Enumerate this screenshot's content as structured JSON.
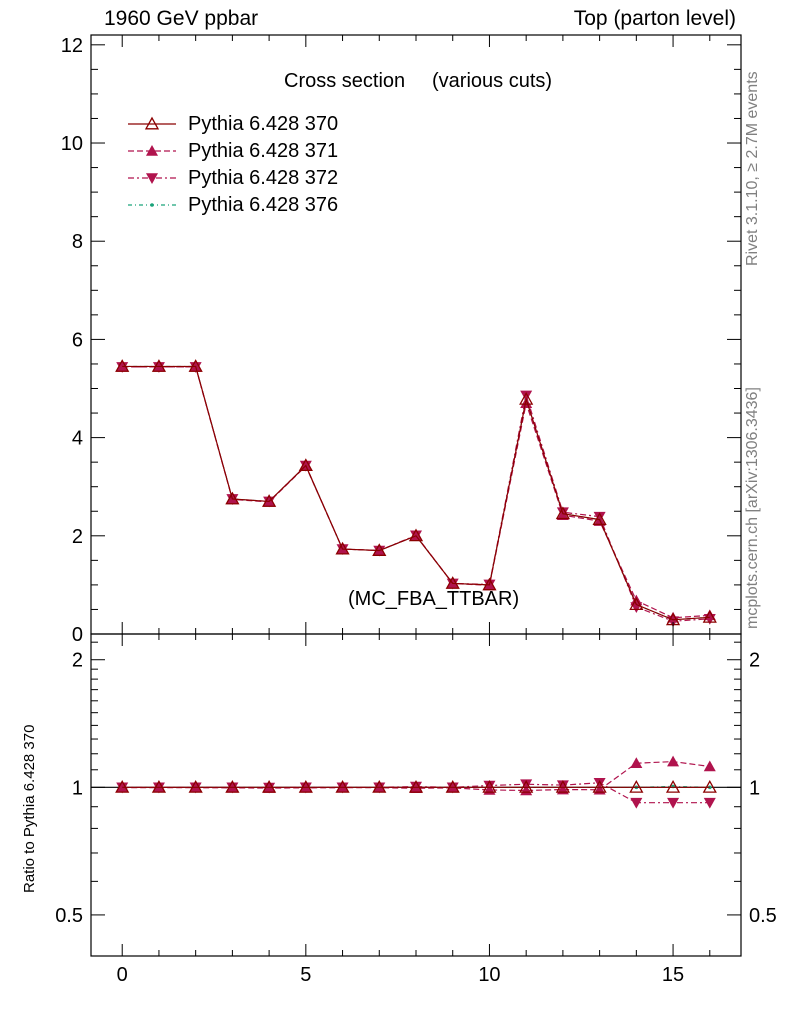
{
  "header": {
    "left": "1960 GeV ppbar",
    "right": "Top (parton level)"
  },
  "side_labels": {
    "rivet": "Rivet 3.1.10, ≥ 2.7M events",
    "mcplots": "mcplots.cern.ch [arXiv:1306.3436]"
  },
  "colors": {
    "s370": "#8b0000",
    "s371": "#b0134d",
    "s372": "#b0134d",
    "s376": "#1aa37a",
    "watermark": "#808080"
  },
  "chart_data": [
    {
      "type": "line",
      "title": "Cross section",
      "subtitle": "(various cuts)",
      "watermark": "(MC_FBA_TTBAR)",
      "xlim": [
        -0.85,
        16.85
      ],
      "ylim": [
        0,
        12.2
      ],
      "yticks": [
        0,
        2,
        4,
        6,
        8,
        10,
        12
      ],
      "ytick_labels": [
        "0",
        "2",
        "4",
        "6",
        "8",
        "10",
        "12"
      ],
      "legend_position": "top-left",
      "x": [
        0,
        1,
        2,
        3,
        4,
        5,
        6,
        7,
        8,
        9,
        10,
        11,
        12,
        13,
        14,
        15,
        16
      ],
      "series": [
        {
          "name": "Pythia 6.428 370",
          "marker": "triangle-open",
          "dash": "solid",
          "values": [
            5.45,
            5.45,
            5.45,
            2.75,
            2.7,
            3.43,
            1.73,
            1.7,
            2.0,
            1.03,
            1.0,
            4.78,
            2.45,
            2.33,
            0.6,
            0.29,
            0.34
          ]
        },
        {
          "name": "Pythia 6.428 371",
          "marker": "triangle-filled",
          "dash": "dashed",
          "values": [
            5.44,
            5.44,
            5.44,
            2.74,
            2.69,
            3.42,
            1.73,
            1.7,
            2.0,
            1.03,
            0.99,
            4.7,
            2.42,
            2.3,
            0.68,
            0.33,
            0.38
          ]
        },
        {
          "name": "Pythia 6.428 372",
          "marker": "triangle-down-filled",
          "dash": "dashdot",
          "values": [
            5.44,
            5.44,
            5.44,
            2.75,
            2.7,
            3.43,
            1.73,
            1.7,
            2.01,
            1.03,
            1.01,
            4.86,
            2.48,
            2.39,
            0.55,
            0.26,
            0.31
          ]
        },
        {
          "name": "Pythia 6.428 376",
          "marker": "dot",
          "dash": "dashdot",
          "values": [
            5.45,
            5.45,
            5.45,
            2.75,
            2.7,
            3.43,
            1.73,
            1.7,
            2.0,
            1.03,
            1.0,
            4.78,
            2.45,
            2.33,
            0.6,
            0.29,
            0.34
          ]
        }
      ]
    },
    {
      "type": "line",
      "ylabel": "Ratio to Pythia 6.428 370",
      "xlim": [
        -0.85,
        16.85
      ],
      "ylim": [
        0.4,
        2.3
      ],
      "log_y": true,
      "yticks": [
        0.5,
        1,
        2
      ],
      "ytick_labels": [
        "0.5",
        "1",
        "2"
      ],
      "xticks": [
        0,
        5,
        10,
        15
      ],
      "xtick_labels": [
        "0",
        "5",
        "10",
        "15"
      ],
      "x": [
        0,
        1,
        2,
        3,
        4,
        5,
        6,
        7,
        8,
        9,
        10,
        11,
        12,
        13,
        14,
        15,
        16
      ],
      "series": [
        {
          "name": "Pythia 6.428 370",
          "values": [
            1,
            1,
            1,
            1,
            1,
            1,
            1,
            1,
            1,
            1,
            1,
            1,
            1,
            1,
            1,
            1,
            1
          ]
        },
        {
          "name": "Pythia 6.428 371",
          "values": [
            0.998,
            0.998,
            0.998,
            0.997,
            0.996,
            0.997,
            0.998,
            0.998,
            0.995,
            0.997,
            0.986,
            0.983,
            0.988,
            0.987,
            1.14,
            1.15,
            1.12
          ]
        },
        {
          "name": "Pythia 6.428 372",
          "values": [
            1.0,
            1.0,
            1.0,
            1.0,
            0.999,
            1.0,
            1.0,
            1.0,
            1.004,
            1.0,
            1.01,
            1.017,
            1.012,
            1.025,
            0.92,
            0.92,
            0.92
          ]
        },
        {
          "name": "Pythia 6.428 376",
          "values": [
            1.0,
            1.0,
            1.0,
            1.0,
            1.0,
            1.0,
            1.0,
            1.0,
            1.0,
            1.0,
            1.0,
            1.0,
            1.0,
            1.0,
            1.0,
            1.005,
            1.0
          ]
        }
      ]
    }
  ]
}
